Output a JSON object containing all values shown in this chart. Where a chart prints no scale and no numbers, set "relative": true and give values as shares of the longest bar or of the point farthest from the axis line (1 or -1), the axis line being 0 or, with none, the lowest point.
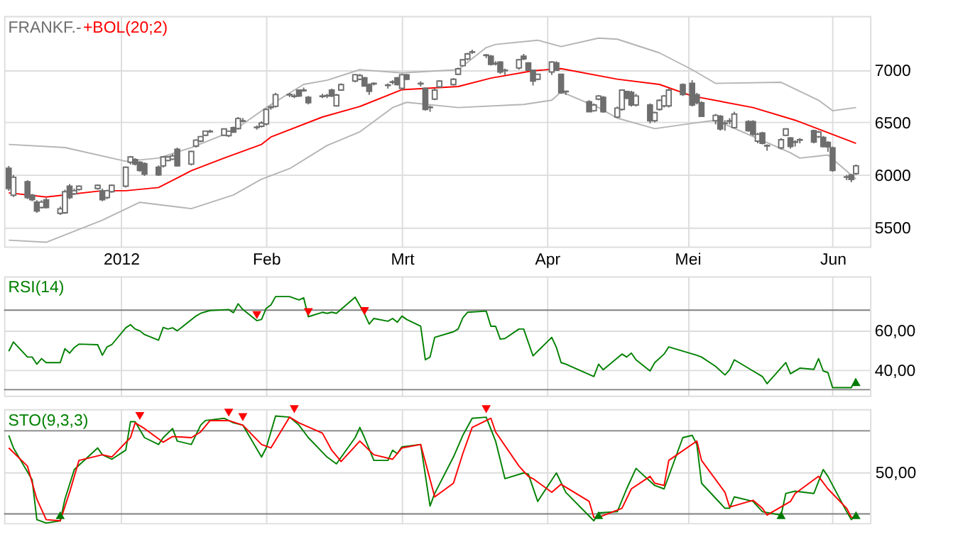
{
  "chart_data": [
    {
      "type": "candlestick",
      "title": "FRANKF.-",
      "legend": "top left",
      "color": "#6e6e6e",
      "grid": true,
      "xlim": [
        "2011-12-07",
        "2012-06-09"
      ],
      "xticks": [
        {
          "value": "2012-01-01",
          "label": "2012"
        },
        {
          "value": "2012-02-01",
          "label": "Feb"
        },
        {
          "value": "2012-03-01",
          "label": "Mrt"
        },
        {
          "value": "2012-04-01",
          "label": "Apr"
        },
        {
          "value": "2012-05-01",
          "label": "Mei"
        },
        {
          "value": "2012-06-01",
          "label": "Jun"
        }
      ],
      "ylim": [
        5320,
        7510
      ],
      "yticks": [
        5500,
        6000,
        6500,
        7000
      ],
      "x": [
        "2011-12-08",
        "2011-12-09",
        "2011-12-12",
        "2011-12-13",
        "2011-12-14",
        "2011-12-15",
        "2011-12-16",
        "2011-12-19",
        "2011-12-20",
        "2011-12-21",
        "2011-12-22",
        "2011-12-23",
        "2011-12-27",
        "2011-12-28",
        "2011-12-29",
        "2011-12-30",
        "2012-01-02",
        "2012-01-03",
        "2012-01-04",
        "2012-01-05",
        "2012-01-06",
        "2012-01-09",
        "2012-01-10",
        "2012-01-11",
        "2012-01-12",
        "2012-01-13",
        "2012-01-16",
        "2012-01-17",
        "2012-01-18",
        "2012-01-19",
        "2012-01-20",
        "2012-01-23",
        "2012-01-24",
        "2012-01-25",
        "2012-01-26",
        "2012-01-27",
        "2012-01-30",
        "2012-01-31",
        "2012-02-01",
        "2012-02-02",
        "2012-02-03",
        "2012-02-06",
        "2012-02-07",
        "2012-02-08",
        "2012-02-09",
        "2012-02-10",
        "2012-02-13",
        "2012-02-14",
        "2012-02-15",
        "2012-02-16",
        "2012-02-17",
        "2012-02-20",
        "2012-02-21",
        "2012-02-22",
        "2012-02-23",
        "2012-02-24",
        "2012-02-27",
        "2012-02-28",
        "2012-02-29",
        "2012-03-01",
        "2012-03-02",
        "2012-03-05",
        "2012-03-06",
        "2012-03-07",
        "2012-03-08",
        "2012-03-09",
        "2012-03-12",
        "2012-03-13",
        "2012-03-14",
        "2012-03-15",
        "2012-03-16",
        "2012-03-19",
        "2012-03-20",
        "2012-03-21",
        "2012-03-22",
        "2012-03-23",
        "2012-03-26",
        "2012-03-27",
        "2012-03-28",
        "2012-03-29",
        "2012-03-30",
        "2012-04-02",
        "2012-04-03",
        "2012-04-04",
        "2012-04-05",
        "2012-04-10",
        "2012-04-11",
        "2012-04-12",
        "2012-04-13",
        "2012-04-16",
        "2012-04-17",
        "2012-04-18",
        "2012-04-19",
        "2012-04-20",
        "2012-04-23",
        "2012-04-24",
        "2012-04-25",
        "2012-04-26",
        "2012-04-27",
        "2012-04-30",
        "2012-05-02",
        "2012-05-03",
        "2012-05-04",
        "2012-05-07",
        "2012-05-08",
        "2012-05-09",
        "2012-05-10",
        "2012-05-11",
        "2012-05-14",
        "2012-05-15",
        "2012-05-16",
        "2012-05-17",
        "2012-05-18",
        "2012-05-21",
        "2012-05-22",
        "2012-05-23",
        "2012-05-24",
        "2012-05-25",
        "2012-05-28",
        "2012-05-29",
        "2012-05-30",
        "2012-05-31",
        "2012-06-01",
        "2012-06-04",
        "2012-06-05",
        "2012-06-06"
      ],
      "ohlc": [
        [
          6064,
          6085,
          5849,
          5871
        ],
        [
          5807,
          6000,
          5790,
          5978
        ],
        [
          5935,
          5950,
          5770,
          5785
        ],
        [
          5807,
          5820,
          5750,
          5764
        ],
        [
          5742,
          5760,
          5640,
          5657
        ],
        [
          5691,
          5760,
          5680,
          5742
        ],
        [
          5764,
          5780,
          5680,
          5691
        ],
        [
          5635,
          5700,
          5620,
          5678
        ],
        [
          5640,
          5860,
          5630,
          5841
        ],
        [
          5893,
          5914,
          5770,
          5785
        ],
        [
          5820,
          5870,
          5810,
          5850
        ],
        [
          5862,
          5900,
          5850,
          5893
        ],
        [
          5871,
          5910,
          5860,
          5901
        ],
        [
          5850,
          5870,
          5750,
          5764
        ],
        [
          5785,
          5860,
          5770,
          5850
        ],
        [
          5841,
          5910,
          5830,
          5901
        ],
        [
          5893,
          6080,
          5880,
          6073
        ],
        [
          6120,
          6180,
          6100,
          6171
        ],
        [
          6146,
          6160,
          6090,
          6103
        ],
        [
          6120,
          6130,
          6030,
          6043
        ],
        [
          6107,
          6120,
          5990,
          6008
        ],
        [
          6073,
          6090,
          5990,
          6000
        ],
        [
          6086,
          6180,
          6070,
          6171
        ],
        [
          6137,
          6180,
          6130,
          6171
        ],
        [
          6150,
          6200,
          6140,
          6180
        ],
        [
          6244,
          6260,
          6080,
          6086
        ],
        [
          6103,
          6230,
          6090,
          6223
        ],
        [
          6274,
          6340,
          6260,
          6330
        ],
        [
          6321,
          6370,
          6310,
          6364
        ],
        [
          6377,
          6420,
          6370,
          6416
        ],
        [
          6410,
          6430,
          6400,
          6415
        ],
        [
          6377,
          6440,
          6370,
          6437
        ],
        [
          6373,
          6420,
          6360,
          6416
        ],
        [
          6450,
          6460,
          6400,
          6407
        ],
        [
          6441,
          6550,
          6430,
          6536
        ],
        [
          6510,
          6540,
          6500,
          6515
        ],
        [
          6450,
          6470,
          6430,
          6454
        ],
        [
          6463,
          6510,
          6450,
          6493
        ],
        [
          6484,
          6630,
          6470,
          6622
        ],
        [
          6640,
          6660,
          6620,
          6645
        ],
        [
          6652,
          6780,
          6640,
          6763
        ],
        [
          6760,
          6780,
          6740,
          6765
        ],
        [
          6745,
          6770,
          6730,
          6750
        ],
        [
          6806,
          6810,
          6740,
          6751
        ],
        [
          6800,
          6830,
          6790,
          6806
        ],
        [
          6738,
          6750,
          6670,
          6686
        ],
        [
          6745,
          6770,
          6730,
          6750
        ],
        [
          6750,
          6770,
          6730,
          6755
        ],
        [
          6806,
          6820,
          6740,
          6751
        ],
        [
          6656,
          6770,
          6650,
          6759
        ],
        [
          6806,
          6870,
          6800,
          6858
        ],
        [
          6892,
          6960,
          6880,
          6952
        ],
        [
          6909,
          6960,
          6900,
          6944
        ],
        [
          6922,
          6930,
          6840,
          6845
        ],
        [
          6858,
          6870,
          6760,
          6794
        ],
        [
          6865,
          6880,
          6850,
          6870
        ],
        [
          6850,
          6870,
          6820,
          6855
        ],
        [
          6880,
          6900,
          6860,
          6885
        ],
        [
          6922,
          6930,
          6850,
          6858
        ],
        [
          6823,
          6960,
          6810,
          6952
        ],
        [
          6952,
          6960,
          6900,
          6909
        ],
        [
          6865,
          6890,
          6840,
          6870
        ],
        [
          6824,
          6830,
          6610,
          6622
        ],
        [
          6640,
          6660,
          6600,
          6645
        ],
        [
          6720,
          6820,
          6710,
          6806
        ],
        [
          6836,
          6900,
          6830,
          6892
        ],
        [
          6858,
          6920,
          6850,
          6909
        ],
        [
          6956,
          7020,
          6950,
          7008
        ],
        [
          7038,
          7100,
          7030,
          7094
        ],
        [
          7102,
          7160,
          7090,
          7150
        ],
        [
          7165,
          7190,
          7150,
          7170
        ],
        [
          7135,
          7150,
          7110,
          7140
        ],
        [
          7128,
          7140,
          7040,
          7051
        ],
        [
          7055,
          7080,
          7040,
          7060
        ],
        [
          7072,
          7080,
          6960,
          6978
        ],
        [
          6990,
          7010,
          6950,
          6995
        ],
        [
          7016,
          7100,
          7000,
          7094
        ],
        [
          7128,
          7150,
          7090,
          7102
        ],
        [
          7064,
          7070,
          6990,
          6995
        ],
        [
          6995,
          7000,
          6850,
          6892
        ],
        [
          6909,
          6960,
          6900,
          6956
        ],
        [
          6978,
          7080,
          6950,
          7072
        ],
        [
          7064,
          7080,
          6990,
          6995
        ],
        [
          6956,
          6960,
          6770,
          6781
        ],
        [
          6790,
          6800,
          6760,
          6795
        ],
        [
          6695,
          6710,
          6600,
          6601
        ],
        [
          6610,
          6680,
          6600,
          6665
        ],
        [
          6720,
          6760,
          6710,
          6750
        ],
        [
          6738,
          6750,
          6590,
          6601
        ],
        [
          6549,
          6650,
          6540,
          6635
        ],
        [
          6622,
          6810,
          6610,
          6806
        ],
        [
          6793,
          6800,
          6720,
          6729
        ],
        [
          6785,
          6800,
          6650,
          6665
        ],
        [
          6665,
          6770,
          6650,
          6750
        ],
        [
          6665,
          6680,
          6490,
          6515
        ],
        [
          6515,
          6600,
          6500,
          6592
        ],
        [
          6622,
          6720,
          6610,
          6708
        ],
        [
          6656,
          6760,
          6640,
          6750
        ],
        [
          6656,
          6820,
          6640,
          6806
        ],
        [
          6858,
          6870,
          6750,
          6763
        ],
        [
          6870,
          6900,
          6650,
          6665
        ],
        [
          6763,
          6780,
          6670,
          6686
        ],
        [
          6686,
          6700,
          6550,
          6557
        ],
        [
          6515,
          6580,
          6480,
          6566
        ],
        [
          6557,
          6570,
          6420,
          6437
        ],
        [
          6490,
          6520,
          6420,
          6493
        ],
        [
          6510,
          6540,
          6480,
          6515
        ],
        [
          6450,
          6600,
          6440,
          6579
        ],
        [
          6506,
          6520,
          6410,
          6420
        ],
        [
          6506,
          6520,
          6370,
          6386
        ],
        [
          6321,
          6400,
          6300,
          6386
        ],
        [
          6399,
          6410,
          6290,
          6300
        ],
        [
          6275,
          6290,
          6230,
          6280
        ],
        [
          6257,
          6350,
          6240,
          6334
        ],
        [
          6377,
          6440,
          6370,
          6437
        ],
        [
          6351,
          6360,
          6250,
          6270
        ],
        [
          6310,
          6330,
          6270,
          6315
        ],
        [
          6330,
          6350,
          6300,
          6335
        ],
        [
          6420,
          6430,
          6300,
          6313
        ],
        [
          6364,
          6420,
          6350,
          6407
        ],
        [
          6356,
          6370,
          6260,
          6270
        ],
        [
          6309,
          6320,
          6220,
          6266
        ],
        [
          6257,
          6270,
          6030,
          6043
        ],
        [
          5978,
          6000,
          5950,
          5982
        ],
        [
          6000,
          6010,
          5930,
          5957
        ],
        [
          6013,
          6100,
          6000,
          6086
        ]
      ],
      "series": [
        {
          "type": "line",
          "color": "#b4b4b4",
          "x": [
            "2011-12-08",
            "2011-12-20",
            "2012-01-02",
            "2012-01-09",
            "2012-01-16",
            "2012-01-25",
            "2012-02-01",
            "2012-02-09",
            "2012-02-14",
            "2012-02-21",
            "2012-03-01",
            "2012-03-13",
            "2012-03-19",
            "2012-03-21",
            "2012-03-30",
            "2012-04-04",
            "2012-04-12",
            "2012-04-16",
            "2012-04-25",
            "2012-05-02",
            "2012-05-07",
            "2012-05-21",
            "2012-05-29",
            "2012-06-01",
            "2012-06-06"
          ],
          "values": [
            6290,
            6260,
            6130,
            6160,
            6260,
            6420,
            6640,
            6860,
            6900,
            7000,
            6970,
            7000,
            7210,
            7240,
            7280,
            7220,
            7300,
            7290,
            7160,
            7000,
            6870,
            6880,
            6710,
            6610,
            6640
          ]
        },
        {
          "type": "line",
          "color": "#b4b4b4",
          "x": [
            "2011-12-08",
            "2011-12-16",
            "2011-12-28",
            "2012-01-05",
            "2012-01-16",
            "2012-01-25",
            "2012-01-31",
            "2012-02-06",
            "2012-02-14",
            "2012-02-21",
            "2012-02-28",
            "2012-03-02",
            "2012-03-13",
            "2012-03-27",
            "2012-04-02",
            "2012-04-04",
            "2012-04-12",
            "2012-04-16",
            "2012-04-24",
            "2012-05-02",
            "2012-05-07",
            "2012-05-23",
            "2012-05-25",
            "2012-05-31",
            "2012-06-06"
          ],
          "values": [
            5380,
            5360,
            5570,
            5740,
            5680,
            5810,
            5960,
            6060,
            6280,
            6410,
            6640,
            6690,
            6640,
            6670,
            6710,
            6790,
            6640,
            6540,
            6440,
            6490,
            6520,
            6210,
            6160,
            6190,
            5960
          ]
        },
        {
          "name": "+BOL(20;2)",
          "type": "line",
          "color": "#ff0000",
          "x": [
            "2011-12-08",
            "2011-12-16",
            "2011-12-28",
            "2012-01-02",
            "2012-01-09",
            "2012-01-16",
            "2012-01-23",
            "2012-01-31",
            "2012-02-02",
            "2012-02-13",
            "2012-02-21",
            "2012-03-01",
            "2012-03-13",
            "2012-03-20",
            "2012-03-29",
            "2012-04-04",
            "2012-04-16",
            "2012-04-25",
            "2012-05-02",
            "2012-05-15",
            "2012-05-24",
            "2012-06-06"
          ],
          "values": [
            5830,
            5790,
            5850,
            5850,
            5880,
            6040,
            6160,
            6290,
            6360,
            6550,
            6650,
            6810,
            6840,
            6920,
            6990,
            7010,
            6910,
            6860,
            6750,
            6640,
            6520,
            6300
          ]
        }
      ]
    },
    {
      "type": "line",
      "title": "RSI(14)",
      "grid": true,
      "tick_labels": "y",
      "xlim": [
        "2011-12-07",
        "2012-06-09"
      ],
      "xticks": [
        {
          "value": "2012-01-01",
          "label": null
        },
        {
          "value": "2012-02-01",
          "label": null
        },
        {
          "value": "2012-03-01",
          "label": null
        },
        {
          "value": "2012-04-01",
          "label": null
        },
        {
          "value": "2012-05-01",
          "label": null
        },
        {
          "value": "2012-06-01",
          "label": null
        }
      ],
      "ylim": [
        27,
        87
      ],
      "yticks": [
        {
          "value": 40,
          "label": "40,00"
        },
        {
          "value": 60,
          "label": "60,00"
        }
      ],
      "ref_lines": [
        {
          "axis": "y",
          "value": 70,
          "color": "#808080"
        },
        {
          "axis": "y",
          "value": 30,
          "color": "#808080"
        }
      ],
      "series": [
        {
          "type": "line",
          "color": "#008000",
          "x": [
            "2011-12-08",
            "2011-12-09",
            "2011-12-12",
            "2011-12-13",
            "2011-12-14",
            "2011-12-15",
            "2011-12-16",
            "2011-12-19",
            "2011-12-20",
            "2011-12-21",
            "2011-12-22",
            "2011-12-23",
            "2011-12-27",
            "2011-12-28",
            "2011-12-29",
            "2011-12-30",
            "2012-01-02",
            "2012-01-03",
            "2012-01-04",
            "2012-01-05",
            "2012-01-06",
            "2012-01-09",
            "2012-01-10",
            "2012-01-11",
            "2012-01-12",
            "2012-01-13",
            "2012-01-17",
            "2012-01-18",
            "2012-01-20",
            "2012-01-24",
            "2012-01-25",
            "2012-01-26",
            "2012-01-27",
            "2012-01-30",
            "2012-01-31",
            "2012-02-01",
            "2012-02-02",
            "2012-02-03",
            "2012-02-06",
            "2012-02-08",
            "2012-02-09",
            "2012-02-10",
            "2012-02-13",
            "2012-02-14",
            "2012-02-15",
            "2012-02-16",
            "2012-02-20",
            "2012-02-22",
            "2012-02-23",
            "2012-02-24",
            "2012-02-27",
            "2012-02-28",
            "2012-02-29",
            "2012-03-01",
            "2012-03-02",
            "2012-03-05",
            "2012-03-06",
            "2012-03-07",
            "2012-03-08",
            "2012-03-12",
            "2012-03-13",
            "2012-03-14",
            "2012-03-15",
            "2012-03-19",
            "2012-03-20",
            "2012-03-21",
            "2012-03-22",
            "2012-03-23",
            "2012-03-26",
            "2012-03-27",
            "2012-03-29",
            "2012-04-02",
            "2012-04-03",
            "2012-04-04",
            "2012-04-05",
            "2012-04-11",
            "2012-04-12",
            "2012-04-13",
            "2012-04-17",
            "2012-04-18",
            "2012-04-19",
            "2012-04-20",
            "2012-04-23",
            "2012-04-24",
            "2012-04-26",
            "2012-04-27",
            "2012-05-03",
            "2012-05-04",
            "2012-05-07",
            "2012-05-09",
            "2012-05-10",
            "2012-05-11",
            "2012-05-15",
            "2012-05-17",
            "2012-05-18",
            "2012-05-22",
            "2012-05-23",
            "2012-05-25",
            "2012-05-28",
            "2012-05-29",
            "2012-05-30",
            "2012-05-31",
            "2012-06-01",
            "2012-06-04",
            "2012-06-05",
            "2012-06-06"
          ],
          "values": [
            49.3,
            54.0,
            46.4,
            46.4,
            42.8,
            45.6,
            43.6,
            43.6,
            50.6,
            48.4,
            51.2,
            52.9,
            52.6,
            47.3,
            51.5,
            52.6,
            61.1,
            62.7,
            60.5,
            59.6,
            57.7,
            54.9,
            61.3,
            60.5,
            61.1,
            59.6,
            67.0,
            68.4,
            69.8,
            70.3,
            68.7,
            73.2,
            70.3,
            64.7,
            65.3,
            70.9,
            72.6,
            76.8,
            76.8,
            75.1,
            76.2,
            66.7,
            68.9,
            68.4,
            68.9,
            68.4,
            76.5,
            68.1,
            63.0,
            65.8,
            64.4,
            65.8,
            63.9,
            67.0,
            65.3,
            61.9,
            45.0,
            46.4,
            56.3,
            59.1,
            60.5,
            66.1,
            68.9,
            69.5,
            61.9,
            61.9,
            55.4,
            55.7,
            60.5,
            60.5,
            47.0,
            56.3,
            51.2,
            43.6,
            42.8,
            36.6,
            42.8,
            40.0,
            47.9,
            46.4,
            48.4,
            45.0,
            39.4,
            43.6,
            47.9,
            51.5,
            47.3,
            46.4,
            41.7,
            37.4,
            40.0,
            45.0,
            39.4,
            36.6,
            33.0,
            43.6,
            38.0,
            40.8,
            40.2,
            45.6,
            39.4,
            38.6,
            31.0,
            31.0,
            31.0,
            35.7
          ]
        },
        {
          "type": "scatter",
          "marker": "triangle-down",
          "color": "#ff0000",
          "x": [
            "2012-01-30",
            "2012-02-10",
            "2012-02-22"
          ],
          "values": [
            67.5,
            69.0,
            69.5
          ]
        },
        {
          "type": "scatter",
          "marker": "triangle",
          "color": "#007a00",
          "x": [
            "2012-06-06"
          ],
          "values": [
            33.8
          ]
        }
      ]
    },
    {
      "type": "line",
      "title": "STO(9,3,3)",
      "grid": "x",
      "tick_labels": false,
      "relative": true,
      "xlim": [
        "2011-12-07",
        "2012-06-09"
      ],
      "xticks": [
        {
          "value": "2012-01-01",
          "label": null
        },
        {
          "value": "2012-02-01",
          "label": null
        },
        {
          "value": "2012-03-01",
          "label": null
        },
        {
          "value": "2012-04-01",
          "label": null
        },
        {
          "value": "2012-05-01",
          "label": null
        },
        {
          "value": "2012-06-01",
          "label": null
        }
      ],
      "annotations": [
        "50,00"
      ],
      "ref_lines": [
        {
          "axis": "y",
          "value": 0.81,
          "color": "#808080"
        },
        {
          "axis": "y",
          "value": 0.08,
          "color": "#808080"
        },
        {
          "axis": "y",
          "value": 0.44,
          "color": "#dcdcdc"
        }
      ],
      "series": [
        {
          "type": "line",
          "color": "#008000",
          "x": [
            "2011-12-08",
            "2011-12-09",
            "2011-12-13",
            "2011-12-14",
            "2011-12-16",
            "2011-12-19",
            "2011-12-20",
            "2011-12-22",
            "2011-12-27",
            "2011-12-28",
            "2011-12-30",
            "2012-01-02",
            "2012-01-03",
            "2012-01-04",
            "2012-01-06",
            "2012-01-09",
            "2012-01-10",
            "2012-01-12",
            "2012-01-13",
            "2012-01-16",
            "2012-01-18",
            "2012-01-19",
            "2012-01-23",
            "2012-01-25",
            "2012-01-27",
            "2012-01-31",
            "2012-02-01",
            "2012-02-03",
            "2012-02-06",
            "2012-02-08",
            "2012-02-10",
            "2012-02-14",
            "2012-02-16",
            "2012-02-20",
            "2012-02-21",
            "2012-02-22",
            "2012-02-24",
            "2012-02-27",
            "2012-02-28",
            "2012-02-29",
            "2012-03-01",
            "2012-03-05",
            "2012-03-07",
            "2012-03-08",
            "2012-03-12",
            "2012-03-14",
            "2012-03-16",
            "2012-03-19",
            "2012-03-21",
            "2012-03-23",
            "2012-03-27",
            "2012-03-28",
            "2012-03-30",
            "2012-04-03",
            "2012-04-05",
            "2012-04-11",
            "2012-04-12",
            "2012-04-16",
            "2012-04-18",
            "2012-04-20",
            "2012-04-24",
            "2012-04-26",
            "2012-04-30",
            "2012-05-02",
            "2012-05-03",
            "2012-05-04",
            "2012-05-09",
            "2012-05-10",
            "2012-05-11",
            "2012-05-15",
            "2012-05-17",
            "2012-05-21",
            "2012-05-22",
            "2012-05-24",
            "2012-05-28",
            "2012-05-30",
            "2012-05-31",
            "2012-06-04",
            "2012-06-05",
            "2012-06-06"
          ],
          "values": [
            0.77,
            0.66,
            0.38,
            0.03,
            0,
            0.02,
            0.21,
            0.47,
            0.66,
            0.6,
            0.56,
            0.64,
            0.89,
            0.89,
            0.75,
            0.69,
            0.75,
            0.83,
            0.72,
            0.69,
            0.86,
            0.9,
            0.92,
            0.88,
            0.86,
            0.58,
            0.66,
            0.94,
            0.93,
            0.86,
            0.75,
            0.58,
            0.52,
            0.75,
            0.84,
            0.75,
            0.55,
            0.55,
            0.64,
            0.61,
            0.67,
            0.69,
            0.15,
            0.26,
            0.58,
            0.77,
            0.92,
            0.93,
            0.72,
            0.39,
            0.44,
            0.43,
            0.19,
            0.44,
            0.27,
            0.02,
            0.09,
            0.1,
            0.3,
            0.48,
            0.33,
            0.3,
            0.75,
            0.77,
            0.69,
            0.35,
            0.13,
            0.13,
            0.23,
            0.19,
            0.1,
            0.07,
            0.26,
            0.28,
            0.26,
            0.47,
            0.41,
            0.1,
            0.03,
            0.07
          ]
        },
        {
          "type": "line",
          "color": "#ff0000",
          "x": [
            "2011-12-08",
            "2011-12-12",
            "2011-12-14",
            "2011-12-16",
            "2011-12-19",
            "2011-12-21",
            "2011-12-23",
            "2011-12-28",
            "2011-12-30",
            "2012-01-03",
            "2012-01-04",
            "2012-01-06",
            "2012-01-10",
            "2012-01-12",
            "2012-01-16",
            "2012-01-18",
            "2012-01-20",
            "2012-01-24",
            "2012-01-27",
            "2012-01-31",
            "2012-02-02",
            "2012-02-06",
            "2012-02-08",
            "2012-02-13",
            "2012-02-15",
            "2012-02-17",
            "2012-02-21",
            "2012-02-24",
            "2012-02-28",
            "2012-03-01",
            "2012-03-05",
            "2012-03-08",
            "2012-03-12",
            "2012-03-14",
            "2012-03-16",
            "2012-03-20",
            "2012-03-21",
            "2012-03-26",
            "2012-03-28",
            "2012-03-29",
            "2012-04-02",
            "2012-04-04",
            "2012-04-10",
            "2012-04-11",
            "2012-04-12",
            "2012-04-17",
            "2012-04-19",
            "2012-04-23",
            "2012-04-24",
            "2012-04-26",
            "2012-04-27",
            "2012-05-03",
            "2012-05-04",
            "2012-05-09",
            "2012-05-10",
            "2012-05-15",
            "2012-05-17",
            "2012-05-18",
            "2012-05-23",
            "2012-05-24",
            "2012-05-29",
            "2012-05-31",
            "2012-06-04",
            "2012-06-05",
            "2012-06-06"
          ],
          "values": [
            0.66,
            0.5,
            0.21,
            0.03,
            0.02,
            0.27,
            0.55,
            0.6,
            0.58,
            0.75,
            0.88,
            0.83,
            0.71,
            0.76,
            0.75,
            0.8,
            0.9,
            0.9,
            0.86,
            0.69,
            0.66,
            0.93,
            0.88,
            0.79,
            0.64,
            0.54,
            0.72,
            0.6,
            0.56,
            0.66,
            0.69,
            0.23,
            0.35,
            0.61,
            0.84,
            0.92,
            0.8,
            0.5,
            0.41,
            0.39,
            0.27,
            0.34,
            0.19,
            0.05,
            0.05,
            0.13,
            0.3,
            0.41,
            0.35,
            0.33,
            0.55,
            0.72,
            0.55,
            0.27,
            0.14,
            0.2,
            0.13,
            0.07,
            0.19,
            0.26,
            0.41,
            0.3,
            0.13,
            0.05,
            0.05
          ]
        },
        {
          "type": "scatter",
          "marker": "triangle-down",
          "color": "#ff0000",
          "x": [
            "2012-01-05",
            "2012-01-24",
            "2012-01-27",
            "2012-02-07",
            "2012-03-19"
          ],
          "values": [
            0.94,
            0.97,
            0.93,
            1,
            1
          ]
        },
        {
          "type": "scatter",
          "marker": "triangle",
          "color": "#007a00",
          "x": [
            "2011-12-19",
            "2012-04-12",
            "2012-05-21",
            "2012-06-06"
          ],
          "values": [
            0.07,
            0.07,
            0.07,
            0.07
          ]
        }
      ]
    }
  ]
}
